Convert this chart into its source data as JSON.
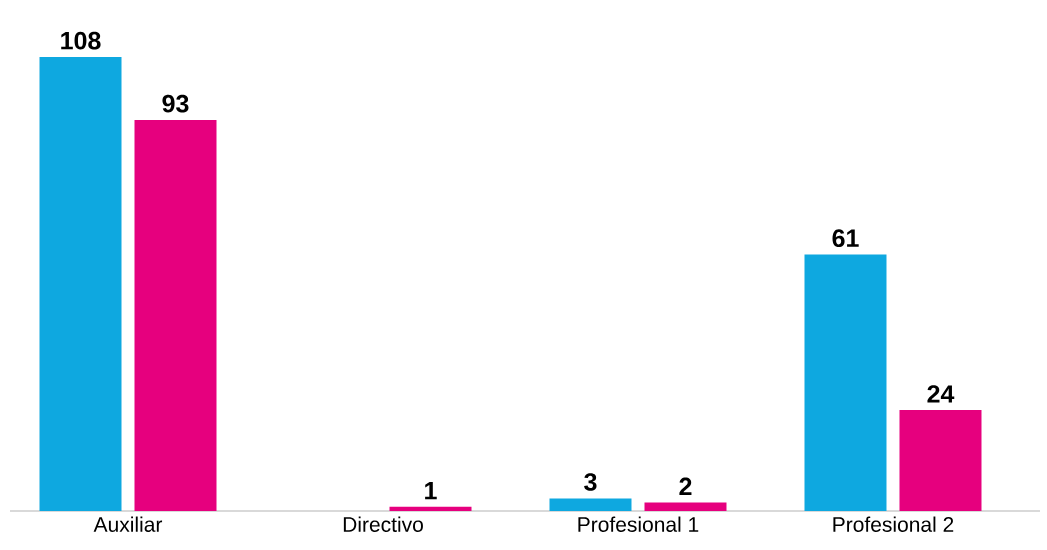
{
  "chart_data": {
    "type": "bar",
    "data_labels": true,
    "categories": [
      "Auxiliar",
      "Directivo",
      "Profesional 1",
      "Profesional 2"
    ],
    "series": [
      {
        "color": "#0ea8e0",
        "values": [
          108,
          null,
          3,
          61
        ]
      },
      {
        "color": "#e6007e",
        "values": [
          93,
          1,
          2,
          24
        ]
      }
    ]
  }
}
